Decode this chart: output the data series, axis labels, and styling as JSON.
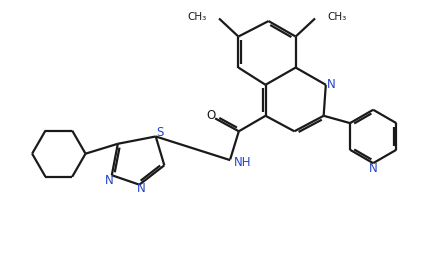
{
  "bg_color": "#ffffff",
  "line_color": "#1a1a1a",
  "line_width": 1.6,
  "figsize": [
    4.32,
    2.6
  ],
  "dpi": 100,
  "xlim": [
    0,
    10
  ],
  "ylim": [
    0,
    6
  ]
}
